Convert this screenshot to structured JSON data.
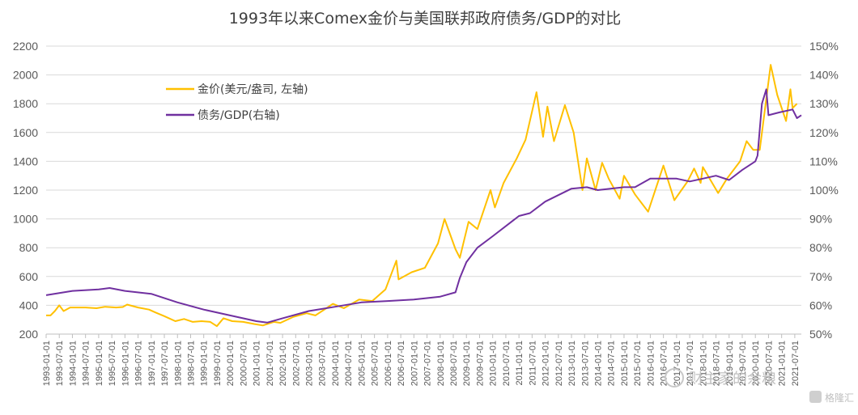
{
  "chart_data": {
    "type": "line",
    "title": "1993年以来Comex金价与美国联邦政府债务/GDP的对比",
    "x_tick_labels": [
      "1993-01-01",
      "1993-07-01",
      "1994-01-01",
      "1994-07-01",
      "1995-01-01",
      "1995-07-01",
      "1996-01-01",
      "1996-07-01",
      "1997-01-01",
      "1997-07-01",
      "1998-01-01",
      "1998-07-01",
      "1999-01-01",
      "1999-07-01",
      "2000-01-01",
      "2000-07-01",
      "2001-01-01",
      "2001-07-01",
      "2002-01-01",
      "2002-07-01",
      "2003-01-01",
      "2003-07-01",
      "2004-01-01",
      "2004-07-01",
      "2005-01-01",
      "2005-07-01",
      "2006-01-01",
      "2006-07-01",
      "2007-01-01",
      "2007-07-01",
      "2008-01-01",
      "2008-07-01",
      "2009-01-01",
      "2009-07-01",
      "2010-01-01",
      "2010-07-01",
      "2011-01-01",
      "2011-07-01",
      "2012-01-01",
      "2012-07-01",
      "2013-01-01",
      "2013-07-01",
      "2014-01-01",
      "2014-07-01",
      "2015-01-01",
      "2015-07-01",
      "2016-01-01",
      "2016-07-01",
      "2017-01-01",
      "2017-07-01",
      "2018-01-01",
      "2018-07-01",
      "2019-01-01",
      "2019-07-01",
      "2020-01-01",
      "2020-07-01",
      "2021-01-01",
      "2021-07-01"
    ],
    "y_left": {
      "min": 200,
      "max": 2200,
      "step": 200,
      "ticks": [
        "200",
        "400",
        "600",
        "800",
        "1000",
        "1200",
        "1400",
        "1600",
        "1800",
        "2000",
        "2200"
      ]
    },
    "y_right": {
      "min": 50,
      "max": 150,
      "step": 10,
      "ticks": [
        "50%",
        "60%",
        "70%",
        "80%",
        "90%",
        "100%",
        "110%",
        "120%",
        "130%",
        "140%",
        "150%"
      ]
    },
    "grid": true,
    "legend_position": "upper-left",
    "series": [
      {
        "name": "金价(美元/盎司, 左轴)",
        "axis": "left",
        "color": "#FFC000",
        "points": [
          [
            "1993-01-01",
            330
          ],
          [
            "1993-03-01",
            330
          ],
          [
            "1993-05-01",
            360
          ],
          [
            "1993-07-01",
            400
          ],
          [
            "1993-09-01",
            360
          ],
          [
            "1993-12-01",
            385
          ],
          [
            "1994-03-01",
            385
          ],
          [
            "1994-07-01",
            385
          ],
          [
            "1994-12-01",
            380
          ],
          [
            "1995-04-01",
            390
          ],
          [
            "1995-09-01",
            385
          ],
          [
            "1995-12-01",
            388
          ],
          [
            "1996-02-01",
            405
          ],
          [
            "1996-07-01",
            385
          ],
          [
            "1996-12-01",
            370
          ],
          [
            "1997-03-01",
            350
          ],
          [
            "1997-07-01",
            325
          ],
          [
            "1997-12-01",
            290
          ],
          [
            "1998-04-01",
            305
          ],
          [
            "1998-08-01",
            285
          ],
          [
            "1998-12-01",
            290
          ],
          [
            "1999-04-01",
            285
          ],
          [
            "1999-07-01",
            255
          ],
          [
            "1999-10-01",
            310
          ],
          [
            "2000-02-01",
            290
          ],
          [
            "2000-07-01",
            285
          ],
          [
            "2000-12-01",
            270
          ],
          [
            "2001-04-01",
            260
          ],
          [
            "2001-09-01",
            285
          ],
          [
            "2001-12-01",
            278
          ],
          [
            "2002-06-01",
            320
          ],
          [
            "2002-12-01",
            345
          ],
          [
            "2003-04-01",
            330
          ],
          [
            "2003-09-01",
            380
          ],
          [
            "2003-12-01",
            410
          ],
          [
            "2004-05-01",
            380
          ],
          [
            "2004-12-01",
            440
          ],
          [
            "2005-06-01",
            430
          ],
          [
            "2005-12-01",
            510
          ],
          [
            "2006-05-01",
            710
          ],
          [
            "2006-06-01",
            580
          ],
          [
            "2006-12-01",
            630
          ],
          [
            "2007-06-01",
            660
          ],
          [
            "2007-12-01",
            830
          ],
          [
            "2008-03-01",
            1000
          ],
          [
            "2008-08-01",
            790
          ],
          [
            "2008-10-01",
            730
          ],
          [
            "2009-02-01",
            980
          ],
          [
            "2009-06-01",
            930
          ],
          [
            "2009-12-01",
            1200
          ],
          [
            "2010-02-01",
            1080
          ],
          [
            "2010-06-01",
            1250
          ],
          [
            "2010-12-01",
            1420
          ],
          [
            "2011-04-01",
            1550
          ],
          [
            "2011-09-01",
            1880
          ],
          [
            "2011-12-01",
            1570
          ],
          [
            "2012-02-01",
            1780
          ],
          [
            "2012-05-01",
            1540
          ],
          [
            "2012-10-01",
            1790
          ],
          [
            "2013-02-01",
            1600
          ],
          [
            "2013-06-01",
            1200
          ],
          [
            "2013-08-01",
            1420
          ],
          [
            "2013-12-01",
            1200
          ],
          [
            "2014-03-01",
            1390
          ],
          [
            "2014-06-01",
            1280
          ],
          [
            "2014-11-01",
            1140
          ],
          [
            "2015-01-01",
            1300
          ],
          [
            "2015-06-01",
            1170
          ],
          [
            "2015-12-01",
            1050
          ],
          [
            "2016-07-01",
            1370
          ],
          [
            "2016-12-01",
            1130
          ],
          [
            "2017-06-01",
            1260
          ],
          [
            "2017-09-01",
            1350
          ],
          [
            "2017-12-01",
            1250
          ],
          [
            "2018-01-01",
            1360
          ],
          [
            "2018-08-01",
            1180
          ],
          [
            "2018-12-01",
            1280
          ],
          [
            "2019-06-01",
            1400
          ],
          [
            "2019-09-01",
            1540
          ],
          [
            "2019-12-01",
            1480
          ],
          [
            "2020-03-01",
            1480
          ],
          [
            "2020-08-01",
            2070
          ],
          [
            "2020-11-01",
            1860
          ],
          [
            "2021-03-01",
            1680
          ],
          [
            "2021-05-01",
            1900
          ],
          [
            "2021-06-01",
            1770
          ],
          [
            "2021-08-01",
            1800
          ]
        ]
      },
      {
        "name": "债务/GDP(右轴)",
        "axis": "right",
        "color": "#7030A0",
        "points": [
          [
            "1993-01-01",
            63.5
          ],
          [
            "1994-01-01",
            65
          ],
          [
            "1995-01-01",
            65.5
          ],
          [
            "1995-06-01",
            66
          ],
          [
            "1996-01-01",
            65
          ],
          [
            "1997-01-01",
            64
          ],
          [
            "1998-01-01",
            61
          ],
          [
            "1999-01-01",
            58.5
          ],
          [
            "2000-01-01",
            56.5
          ],
          [
            "2001-01-01",
            54.5
          ],
          [
            "2001-06-01",
            54
          ],
          [
            "2002-01-01",
            55.5
          ],
          [
            "2003-01-01",
            58
          ],
          [
            "2004-01-01",
            59.5
          ],
          [
            "2005-01-01",
            61
          ],
          [
            "2006-01-01",
            61.5
          ],
          [
            "2007-01-01",
            62
          ],
          [
            "2008-01-01",
            63
          ],
          [
            "2008-08-01",
            64.5
          ],
          [
            "2008-10-01",
            69.5
          ],
          [
            "2009-01-01",
            75
          ],
          [
            "2009-06-01",
            80
          ],
          [
            "2010-01-01",
            84
          ],
          [
            "2011-01-01",
            91
          ],
          [
            "2011-06-01",
            92
          ],
          [
            "2012-01-01",
            96
          ],
          [
            "2013-01-01",
            100.5
          ],
          [
            "2013-08-01",
            101
          ],
          [
            "2014-01-01",
            100
          ],
          [
            "2015-01-01",
            101
          ],
          [
            "2015-06-01",
            101
          ],
          [
            "2016-01-01",
            104
          ],
          [
            "2017-01-01",
            104
          ],
          [
            "2017-07-01",
            103
          ],
          [
            "2018-01-01",
            104
          ],
          [
            "2018-07-01",
            105
          ],
          [
            "2019-01-01",
            103.5
          ],
          [
            "2019-07-01",
            107
          ],
          [
            "2020-01-01",
            110
          ],
          [
            "2020-02-01",
            112
          ],
          [
            "2020-04-01",
            130
          ],
          [
            "2020-06-01",
            135
          ],
          [
            "2020-07-01",
            126
          ],
          [
            "2020-12-01",
            127
          ],
          [
            "2021-06-01",
            128
          ],
          [
            "2021-08-01",
            125
          ],
          [
            "2021-10-01",
            126
          ]
        ]
      }
    ]
  },
  "watermark": {
    "text": "财主家的余粮",
    "badge": "格隆汇"
  }
}
